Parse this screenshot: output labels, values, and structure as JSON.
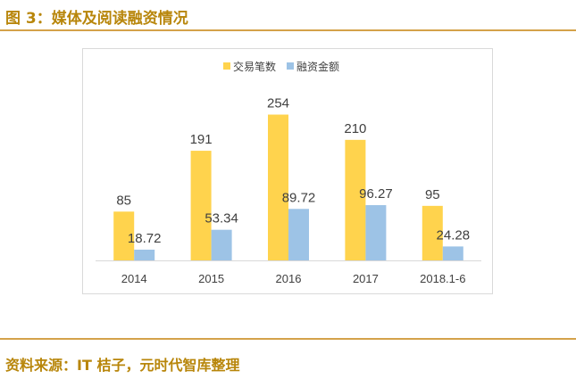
{
  "figure": {
    "title": "图 3：媒体及阅读融资情况",
    "source": "资料来源：IT 桔子，元时代智库整理"
  },
  "chart_data": {
    "type": "bar",
    "categories": [
      "2014",
      "2015",
      "2016",
      "2017",
      "2018.1-6"
    ],
    "series": [
      {
        "name": "交易笔数",
        "values": [
          85,
          191,
          254,
          210,
          95
        ],
        "labels": [
          "85",
          "191",
          "254",
          "210",
          "95"
        ],
        "color": "#ffd34d",
        "scale_max": 275
      },
      {
        "name": "融资金额",
        "values": [
          18.72,
          53.34,
          89.72,
          96.27,
          24.28
        ],
        "labels": [
          "18.72",
          "53.34",
          "89.72",
          "96.27",
          "24.28"
        ],
        "color": "#9dc3e6",
        "scale_max": 275
      }
    ],
    "legend_position": "top-center",
    "grid": false,
    "xlabel": "",
    "ylabel": ""
  }
}
